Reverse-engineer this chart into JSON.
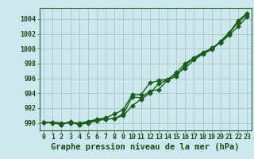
{
  "title": "Graphe pression niveau de la mer (hPa)",
  "bg_color": "#cce8ee",
  "grid_color": "#aacccc",
  "line_color": "#1a5c1a",
  "x_ticks": [
    0,
    1,
    2,
    3,
    4,
    5,
    6,
    7,
    8,
    9,
    10,
    11,
    12,
    13,
    14,
    15,
    16,
    17,
    18,
    19,
    20,
    21,
    22,
    23
  ],
  "xlim": [
    -0.5,
    23.5
  ],
  "ylim": [
    989.0,
    1005.5
  ],
  "yticks": [
    990,
    992,
    994,
    996,
    998,
    1000,
    1002,
    1004
  ],
  "line1": [
    990.1,
    990.1,
    989.8,
    990.2,
    989.8,
    990.1,
    990.4,
    990.5,
    990.6,
    991.2,
    993.5,
    993.4,
    994.3,
    994.5,
    995.8,
    996.8,
    998.0,
    998.8,
    999.5,
    1000.0,
    1001.0,
    1002.2,
    1003.8,
    1004.8
  ],
  "line2": [
    990.1,
    990.0,
    989.8,
    990.1,
    989.8,
    990.0,
    990.3,
    990.5,
    990.6,
    991.0,
    992.3,
    993.2,
    994.0,
    995.3,
    995.8,
    996.3,
    997.8,
    998.7,
    999.4,
    1000.1,
    1000.8,
    1001.9,
    1003.0,
    1004.3
  ],
  "line3": [
    990.1,
    990.1,
    990.0,
    990.0,
    990.0,
    990.2,
    990.5,
    990.7,
    991.2,
    991.8,
    993.8,
    993.8,
    995.4,
    995.7,
    995.9,
    996.6,
    997.4,
    998.5,
    999.3,
    999.9,
    1000.9,
    1002.1,
    1003.6,
    1004.6
  ],
  "font_color": "#1a4a1a",
  "tick_fontsize": 6,
  "title_fontsize": 7.5,
  "linewidth": 1.0,
  "markersize": 2.5
}
